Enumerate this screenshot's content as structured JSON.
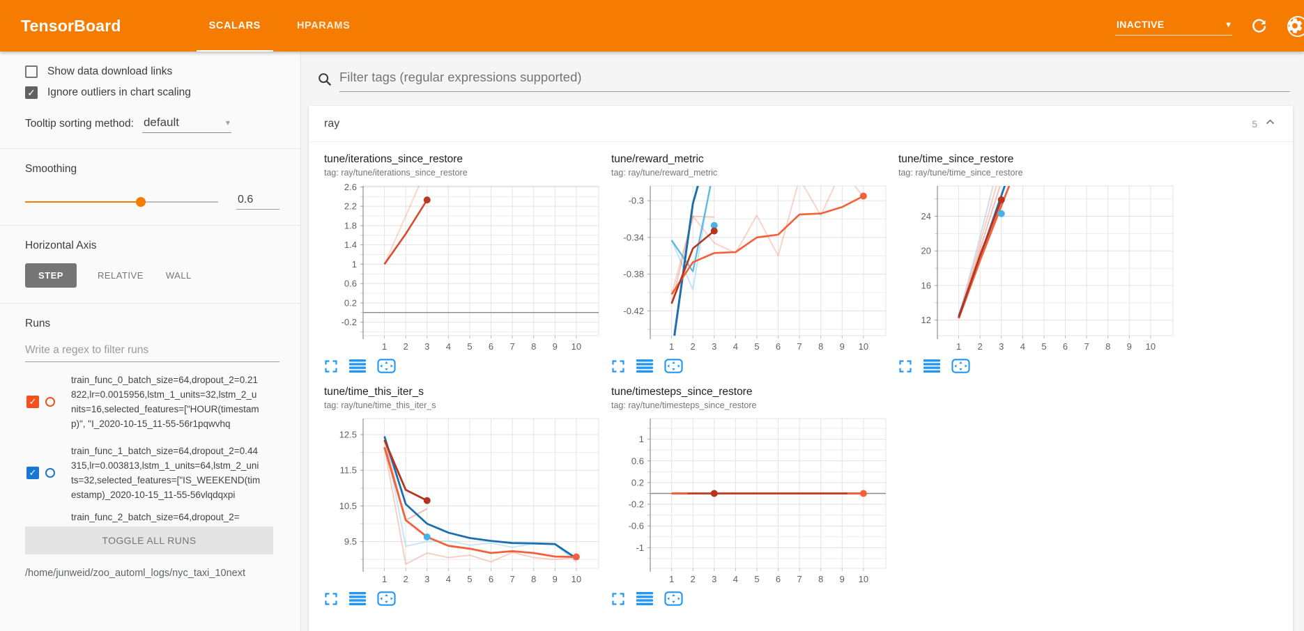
{
  "header": {
    "title": "TensorBoard",
    "tabs": [
      {
        "label": "SCALARS",
        "active": true
      },
      {
        "label": "HPARAMS",
        "active": false
      }
    ],
    "status": "INACTIVE",
    "colors": {
      "bar": "#f57c00",
      "icon_blue": "#2196f3"
    }
  },
  "sidebar": {
    "checkboxes": [
      {
        "label": "Show data download links",
        "checked": false
      },
      {
        "label": "Ignore outliers in chart scaling",
        "checked": true
      }
    ],
    "tooltip_sorting": {
      "label": "Tooltip sorting method:",
      "value": "default"
    },
    "smoothing": {
      "label": "Smoothing",
      "value": "0.6",
      "percent": 60
    },
    "horizontal_axis": {
      "label": "Horizontal Axis",
      "options": [
        {
          "label": "STEP",
          "active": true
        },
        {
          "label": "RELATIVE",
          "active": false
        },
        {
          "label": "WALL",
          "active": false
        }
      ]
    },
    "runs": {
      "label": "Runs",
      "filter_placeholder": "Write a regex to filter runs",
      "items": [
        {
          "name": "train_func_0_batch_size=64,dropout_2=0.21822,lr=0.0015956,lstm_1_units=32,lstm_2_units=16,selected_features=[\"HOUR(timestamp)\", \"I_2020-10-15_11-55-56r1pqwvhq",
          "checked": true,
          "color": "#f4511e",
          "partial": false
        },
        {
          "name": "train_func_1_batch_size=64,dropout_2=0.44315,lr=0.003813,lstm_1_units=64,lstm_2_units=32,selected_features=[\"IS_WEEKEND(timestamp)_2020-10-15_11-55-56vlqdqxpi",
          "checked": true,
          "color": "#1976d2",
          "partial": false
        },
        {
          "name": "train_func_2_batch_size=64,dropout_2=",
          "checked": true,
          "color": "#e53935",
          "partial": true
        }
      ],
      "toggle_all_label": "TOGGLE ALL RUNS",
      "log_path": "/home/junweid/zoo_automl_logs/nyc_taxi_10next"
    }
  },
  "main": {
    "filter_placeholder": "Filter tags (regular expressions supported)",
    "section": {
      "name": "ray",
      "count": "5"
    }
  },
  "chart_data": [
    {
      "type": "line",
      "title": "tune/iterations_since_restore",
      "tag": "tag: ray/tune/iterations_since_restore",
      "xlim": [
        0,
        11.05
      ],
      "xticks": [
        1,
        2,
        3,
        4,
        5,
        6,
        7,
        8,
        9,
        10
      ],
      "ylim": [
        -0.48,
        2.62
      ],
      "yticks": [
        -0.2,
        0.2,
        0.6,
        1,
        1.4,
        1.8,
        2.2
      ],
      "zero_line": true,
      "series": [
        {
          "name": "orange-raw",
          "color": "#f0613c",
          "opacity": 0.25,
          "width": 2,
          "points": [
            [
              1,
              1
            ],
            [
              2,
              2
            ],
            [
              3,
              3
            ]
          ]
        },
        {
          "name": "orange-smoothed",
          "color": "#d84b2d",
          "opacity": 1,
          "width": 2.6,
          "points": [
            [
              1,
              1
            ],
            [
              2,
              1.63
            ],
            [
              3,
              2.33
            ]
          ]
        }
      ],
      "dots": [
        {
          "x": 3,
          "y": 2.33,
          "color": "#b53b22"
        }
      ]
    },
    {
      "type": "line",
      "title": "tune/reward_metric",
      "tag": "tag: ray/tune/reward_metric",
      "xlim": [
        0,
        11.05
      ],
      "xticks": [
        1,
        2,
        3,
        4,
        5,
        6,
        7,
        8,
        9,
        10
      ],
      "ylim": [
        -0.447,
        -0.284
      ],
      "yticks": [
        -0.42,
        -0.38,
        -0.34,
        -0.3
      ],
      "zero_line": false,
      "series": [
        {
          "name": "lightblue-raw",
          "color": "#9ad4f0",
          "opacity": 0.6,
          "width": 2,
          "points": [
            [
              1,
              -0.343
            ],
            [
              2,
              -0.397
            ],
            [
              2.95,
              -0.262
            ]
          ]
        },
        {
          "name": "orange-raw",
          "color": "#f0613c",
          "opacity": 0.28,
          "width": 2,
          "points": [
            [
              1,
              -0.402
            ],
            [
              2,
              -0.317
            ],
            [
              3,
              -0.346
            ],
            [
              4,
              -0.357
            ],
            [
              5,
              -0.316
            ],
            [
              6,
              -0.36
            ],
            [
              7,
              -0.276
            ],
            [
              8,
              -0.316
            ],
            [
              9,
              -0.266
            ],
            [
              10,
              -0.296
            ]
          ]
        },
        {
          "name": "darkred-raw",
          "color": "#d84b2d",
          "opacity": 0.3,
          "width": 2,
          "points": [
            [
              1,
              -0.412
            ],
            [
              2,
              -0.317
            ],
            [
              3,
              -0.318
            ]
          ]
        },
        {
          "name": "cyan-raw",
          "color": "#4fb3e2",
          "opacity": 0.9,
          "width": 2.3,
          "points": [
            [
              1,
              -0.343
            ],
            [
              2,
              -0.377
            ],
            [
              3.02,
              -0.262
            ]
          ]
        },
        {
          "name": "blue-smoothed",
          "color": "#1b6fae",
          "opacity": 1,
          "width": 3,
          "points": [
            [
              1.13,
              -0.447
            ],
            [
              2,
              -0.303
            ],
            [
              2.5,
              -0.262
            ]
          ]
        },
        {
          "name": "orange-smoothed",
          "color": "#f0613c",
          "opacity": 1,
          "width": 2.6,
          "points": [
            [
              1,
              -0.402
            ],
            [
              2,
              -0.367
            ],
            [
              3,
              -0.357
            ],
            [
              4,
              -0.356
            ],
            [
              5,
              -0.34
            ],
            [
              6,
              -0.337
            ],
            [
              7,
              -0.315
            ],
            [
              8,
              -0.314
            ],
            [
              9,
              -0.307
            ],
            [
              10,
              -0.295
            ]
          ]
        },
        {
          "name": "darkred-smoothed",
          "color": "#b5351f",
          "opacity": 1,
          "width": 2.6,
          "points": [
            [
              1,
              -0.412
            ],
            [
              2,
              -0.352
            ],
            [
              3,
              -0.333
            ]
          ]
        }
      ],
      "dots": [
        {
          "x": 3,
          "y": -0.327,
          "color": "#45b3e8"
        },
        {
          "x": 3,
          "y": -0.333,
          "color": "#b5351f"
        },
        {
          "x": 10,
          "y": -0.295,
          "color": "#f4603e"
        }
      ]
    },
    {
      "type": "line",
      "title": "tune/time_since_restore",
      "tag": "tag: ray/tune/time_since_restore",
      "xlim": [
        0,
        11.05
      ],
      "xticks": [
        1,
        2,
        3,
        4,
        5,
        6,
        7,
        8,
        9,
        10
      ],
      "ylim": [
        10.2,
        27.5
      ],
      "yticks": [
        12,
        16,
        20,
        24
      ],
      "zero_line": false,
      "series": [
        {
          "name": "blue-raw",
          "color": "#a9c2de",
          "opacity": 0.55,
          "width": 2,
          "points": [
            [
              1,
              12.45
            ],
            [
              2,
              21.6
            ],
            [
              2.62,
              27.6
            ]
          ]
        },
        {
          "name": "orange-raw",
          "color": "#f0a18c",
          "opacity": 0.5,
          "width": 2,
          "points": [
            [
              1,
              12.25
            ],
            [
              2,
              20.9
            ],
            [
              2.78,
              27.6
            ]
          ]
        },
        {
          "name": "darkred-raw",
          "color": "#e08874",
          "opacity": 0.5,
          "width": 2,
          "points": [
            [
              1,
              12.3
            ],
            [
              2,
              20.2
            ],
            [
              2.95,
              27.6
            ]
          ]
        },
        {
          "name": "blue-smoothed",
          "color": "#1b6fae",
          "opacity": 1,
          "width": 2.8,
          "points": [
            [
              1,
              12.45
            ],
            [
              2,
              19.3
            ],
            [
              3.17,
              27.6
            ]
          ]
        },
        {
          "name": "orange-smoothed",
          "color": "#f0613c",
          "opacity": 1,
          "width": 2.8,
          "points": [
            [
              1,
              12.2
            ],
            [
              2,
              18.9
            ],
            [
              3.38,
              27.6
            ]
          ]
        },
        {
          "name": "darkred-smoothed",
          "color": "#b5351f",
          "opacity": 1,
          "width": 2.8,
          "points": [
            [
              1,
              12.3
            ],
            [
              2,
              19.5
            ],
            [
              3,
              25.9
            ]
          ]
        }
      ],
      "dots": [
        {
          "x": 3,
          "y": 25.9,
          "color": "#b5351f"
        },
        {
          "x": 3,
          "y": 24.3,
          "color": "#45b3e8"
        }
      ]
    },
    {
      "type": "line",
      "title": "tune/time_this_iter_s",
      "tag": "tag: ray/tune/time_this_iter_s",
      "xlim": [
        0,
        11.05
      ],
      "xticks": [
        1,
        2,
        3,
        4,
        5,
        6,
        7,
        8,
        9,
        10
      ],
      "ylim": [
        8.75,
        12.95
      ],
      "yticks": [
        9.5,
        10.5,
        11.5,
        12.5
      ],
      "zero_line": false,
      "series": [
        {
          "name": "blue-raw",
          "color": "#9ad4f0",
          "opacity": 0.55,
          "width": 2,
          "points": [
            [
              1,
              12.45
            ],
            [
              2,
              9.37
            ],
            [
              3,
              9.5
            ],
            [
              4,
              9.52
            ],
            [
              5,
              9.4
            ],
            [
              6,
              9.46
            ],
            [
              7,
              9.34
            ],
            [
              8,
              9.44
            ],
            [
              9,
              9.42
            ],
            [
              10,
              8.93
            ]
          ]
        },
        {
          "name": "orange-raw",
          "color": "#f0a18c",
          "opacity": 0.5,
          "width": 2,
          "points": [
            [
              1,
              12.15
            ],
            [
              2,
              8.87
            ],
            [
              3,
              9.18
            ],
            [
              4,
              9.05
            ],
            [
              5,
              9.12
            ],
            [
              6,
              8.93
            ],
            [
              7,
              9.2
            ],
            [
              8,
              9.05
            ],
            [
              9,
              9.0
            ],
            [
              10,
              9.05
            ]
          ]
        },
        {
          "name": "darkred-raw",
          "color": "#e08874",
          "opacity": 0.55,
          "width": 2,
          "points": [
            [
              1,
              12.35
            ],
            [
              2,
              10.1
            ],
            [
              3,
              10.42
            ]
          ]
        },
        {
          "name": "blue-smoothed",
          "color": "#1b6fae",
          "opacity": 1,
          "width": 2.8,
          "points": [
            [
              1,
              12.45
            ],
            [
              2,
              10.55
            ],
            [
              3,
              10.0
            ],
            [
              4,
              9.75
            ],
            [
              5,
              9.6
            ],
            [
              6,
              9.52
            ],
            [
              7,
              9.46
            ],
            [
              8,
              9.45
            ],
            [
              9,
              9.43
            ],
            [
              10,
              9.03
            ]
          ]
        },
        {
          "name": "orange-smoothed",
          "color": "#f0613c",
          "opacity": 1,
          "width": 2.8,
          "points": [
            [
              1,
              12.15
            ],
            [
              2,
              10.1
            ],
            [
              3,
              9.63
            ],
            [
              4,
              9.38
            ],
            [
              5,
              9.3
            ],
            [
              6,
              9.18
            ],
            [
              7,
              9.23
            ],
            [
              8,
              9.18
            ],
            [
              9,
              9.08
            ],
            [
              10,
              9.07
            ]
          ]
        },
        {
          "name": "darkred-smoothed",
          "color": "#b5351f",
          "opacity": 1,
          "width": 2.8,
          "points": [
            [
              1,
              12.35
            ],
            [
              2,
              10.95
            ],
            [
              3,
              10.65
            ]
          ]
        }
      ],
      "dots": [
        {
          "x": 3,
          "y": 10.65,
          "color": "#b5351f"
        },
        {
          "x": 3,
          "y": 9.63,
          "color": "#45b3e8"
        },
        {
          "x": 10,
          "y": 9.07,
          "color": "#f4603e"
        }
      ]
    },
    {
      "type": "line",
      "title": "tune/timesteps_since_restore",
      "tag": "tag: ray/tune/timesteps_since_restore",
      "xlim": [
        0,
        11.05
      ],
      "xticks": [
        1,
        2,
        3,
        4,
        5,
        6,
        7,
        8,
        9,
        10
      ],
      "ylim": [
        -1.38,
        1.38
      ],
      "yticks": [
        -1,
        -0.6,
        -0.2,
        0.2,
        0.6,
        1
      ],
      "zero_line": true,
      "series": [
        {
          "name": "orange-smoothed",
          "color": "#f4603e",
          "opacity": 1,
          "width": 3,
          "points": [
            [
              1,
              0
            ],
            [
              10,
              0
            ]
          ]
        },
        {
          "name": "darkred-smoothed",
          "color": "#b5351f",
          "opacity": 0.8,
          "width": 2.6,
          "points": [
            [
              1.75,
              0
            ],
            [
              9.25,
              0
            ]
          ]
        }
      ],
      "dots": [
        {
          "x": 3,
          "y": 0,
          "color": "#b5351f"
        },
        {
          "x": 10,
          "y": 0,
          "color": "#f4603e"
        }
      ]
    }
  ]
}
